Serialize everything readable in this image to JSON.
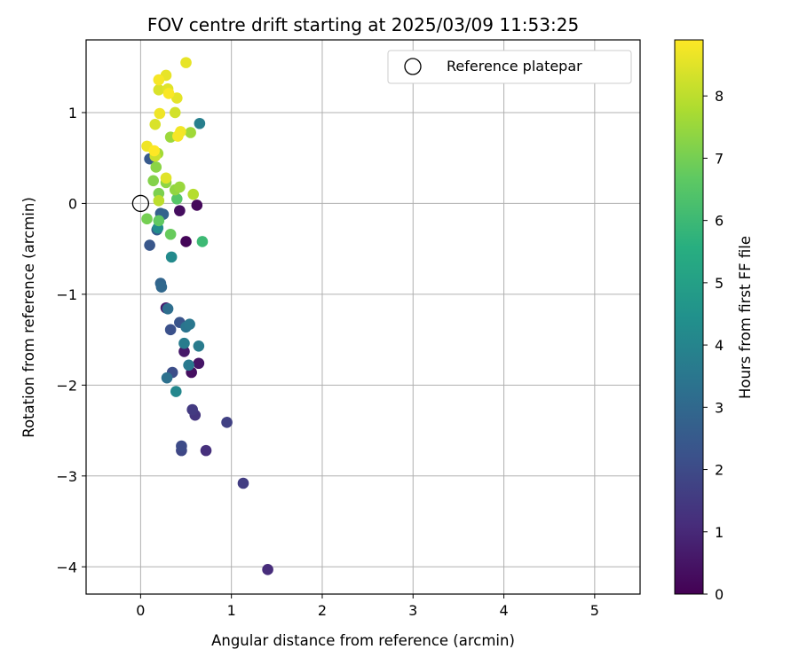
{
  "chart_data": {
    "type": "scatter",
    "title": "FOV centre drift starting at 2025/03/09 11:53:25",
    "xlabel": "Angular distance from reference (arcmin)",
    "ylabel": "Rotation from reference (arcmin)",
    "xlim": [
      -0.6,
      5.5
    ],
    "ylim": [
      -4.3,
      1.8
    ],
    "xticks": [
      0,
      1,
      2,
      3,
      4,
      5
    ],
    "xtick_labels": [
      "0",
      "1",
      "2",
      "3",
      "4",
      "5"
    ],
    "yticks": [
      -4,
      -3,
      -2,
      -1,
      0,
      1
    ],
    "ytick_labels": [
      "−4",
      "−3",
      "−2",
      "−1",
      "0",
      "1"
    ],
    "grid": true,
    "colormap": "viridis",
    "legend": {
      "placement": "top-right",
      "entries": [
        {
          "label": "Reference platepar",
          "marker": "open-circle"
        }
      ]
    },
    "reference_point": {
      "x": 0,
      "y": 0
    },
    "colorbar": {
      "label": "Hours from first FF file",
      "range": [
        0,
        8.9
      ],
      "ticks": [
        0,
        1,
        2,
        3,
        4,
        5,
        6,
        7,
        8
      ],
      "tick_labels": [
        "0",
        "1",
        "2",
        "3",
        "4",
        "5",
        "6",
        "7",
        "8"
      ]
    },
    "points": [
      {
        "x": 0.5,
        "y": -0.42,
        "hours": 0.1
      },
      {
        "x": 0.62,
        "y": -0.02,
        "hours": 0.2
      },
      {
        "x": 0.43,
        "y": -0.08,
        "hours": 0.3
      },
      {
        "x": 0.56,
        "y": -1.86,
        "hours": 0.35
      },
      {
        "x": 0.64,
        "y": -1.76,
        "hours": 0.5
      },
      {
        "x": 0.48,
        "y": -1.63,
        "hours": 0.6
      },
      {
        "x": 0.28,
        "y": -1.15,
        "hours": 0.7
      },
      {
        "x": 1.4,
        "y": -4.03,
        "hours": 1.1
      },
      {
        "x": 0.72,
        "y": -2.72,
        "hours": 1.2
      },
      {
        "x": 0.6,
        "y": -2.33,
        "hours": 1.35
      },
      {
        "x": 0.57,
        "y": -2.27,
        "hours": 1.5
      },
      {
        "x": 1.13,
        "y": -3.08,
        "hours": 1.6
      },
      {
        "x": 0.95,
        "y": -2.41,
        "hours": 1.7
      },
      {
        "x": 0.45,
        "y": -2.72,
        "hours": 1.9
      },
      {
        "x": 0.45,
        "y": -2.67,
        "hours": 2.0
      },
      {
        "x": 0.35,
        "y": -1.86,
        "hours": 2.1
      },
      {
        "x": 0.33,
        "y": -1.39,
        "hours": 2.2
      },
      {
        "x": 0.43,
        "y": -1.31,
        "hours": 2.3
      },
      {
        "x": 0.1,
        "y": -0.46,
        "hours": 2.4
      },
      {
        "x": 0.1,
        "y": 0.49,
        "hours": 2.5
      },
      {
        "x": 0.18,
        "y": -0.29,
        "hours": 2.6
      },
      {
        "x": 0.22,
        "y": -0.11,
        "hours": 2.7
      },
      {
        "x": 0.25,
        "y": -0.12,
        "hours": 2.8
      },
      {
        "x": 0.22,
        "y": -0.88,
        "hours": 2.9
      },
      {
        "x": 0.23,
        "y": -0.92,
        "hours": 3.0
      },
      {
        "x": 0.3,
        "y": -1.16,
        "hours": 3.2
      },
      {
        "x": 0.29,
        "y": -1.92,
        "hours": 3.3
      },
      {
        "x": 0.5,
        "y": -1.36,
        "hours": 3.4
      },
      {
        "x": 0.54,
        "y": -1.33,
        "hours": 3.5
      },
      {
        "x": 0.53,
        "y": -1.78,
        "hours": 3.6
      },
      {
        "x": 0.64,
        "y": -1.57,
        "hours": 3.65
      },
      {
        "x": 0.48,
        "y": -1.54,
        "hours": 3.7
      },
      {
        "x": 0.65,
        "y": 0.88,
        "hours": 3.8
      },
      {
        "x": 0.39,
        "y": -2.07,
        "hours": 4.1
      },
      {
        "x": 0.34,
        "y": -0.59,
        "hours": 4.2
      },
      {
        "x": 0.19,
        "y": -0.27,
        "hours": 4.3
      },
      {
        "x": 0.68,
        "y": -0.42,
        "hours": 6.0
      },
      {
        "x": 0.4,
        "y": 0.05,
        "hours": 6.5
      },
      {
        "x": 0.2,
        "y": -0.19,
        "hours": 6.7
      },
      {
        "x": 0.33,
        "y": -0.34,
        "hours": 6.8
      },
      {
        "x": 0.07,
        "y": -0.17,
        "hours": 7.0
      },
      {
        "x": 0.2,
        "y": 0.11,
        "hours": 7.1
      },
      {
        "x": 0.14,
        "y": 0.25,
        "hours": 7.2
      },
      {
        "x": 0.17,
        "y": 0.4,
        "hours": 7.3
      },
      {
        "x": 0.28,
        "y": 0.23,
        "hours": 7.35
      },
      {
        "x": 0.38,
        "y": 0.15,
        "hours": 7.4
      },
      {
        "x": 0.43,
        "y": 0.18,
        "hours": 7.5
      },
      {
        "x": 0.33,
        "y": 0.73,
        "hours": 7.55
      },
      {
        "x": 0.55,
        "y": 0.78,
        "hours": 7.6
      },
      {
        "x": 0.19,
        "y": 0.55,
        "hours": 7.65
      },
      {
        "x": 0.58,
        "y": 0.1,
        "hours": 7.9
      },
      {
        "x": 0.2,
        "y": 0.03,
        "hours": 8.0
      },
      {
        "x": 0.16,
        "y": 0.52,
        "hours": 8.2
      },
      {
        "x": 0.38,
        "y": 1.0,
        "hours": 8.3
      },
      {
        "x": 0.2,
        "y": 1.25,
        "hours": 8.4
      },
      {
        "x": 0.16,
        "y": 0.87,
        "hours": 8.4
      },
      {
        "x": 0.28,
        "y": 0.28,
        "hours": 8.5
      },
      {
        "x": 0.3,
        "y": 1.26,
        "hours": 8.5
      },
      {
        "x": 0.4,
        "y": 1.16,
        "hours": 8.55
      },
      {
        "x": 0.28,
        "y": 1.41,
        "hours": 8.6
      },
      {
        "x": 0.5,
        "y": 1.55,
        "hours": 8.6
      },
      {
        "x": 0.07,
        "y": 0.63,
        "hours": 8.7
      },
      {
        "x": 0.21,
        "y": 0.99,
        "hours": 8.7
      },
      {
        "x": 0.44,
        "y": 0.79,
        "hours": 8.75
      },
      {
        "x": 0.41,
        "y": 0.74,
        "hours": 8.8
      },
      {
        "x": 0.2,
        "y": 1.36,
        "hours": 8.8
      },
      {
        "x": 0.31,
        "y": 1.21,
        "hours": 8.85
      },
      {
        "x": 0.15,
        "y": 0.58,
        "hours": 8.9
      }
    ]
  }
}
